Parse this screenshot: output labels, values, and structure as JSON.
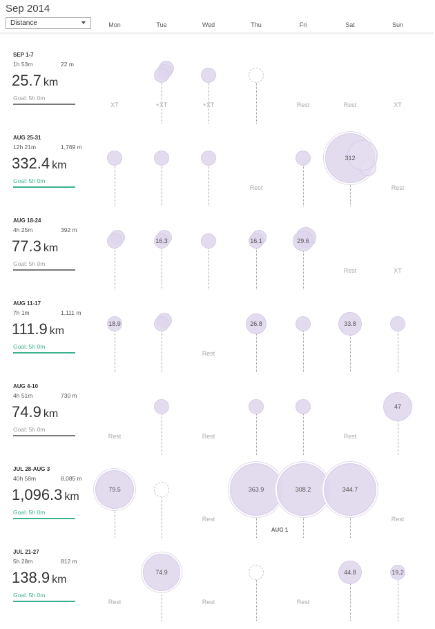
{
  "header": {
    "title": "Sep 2014",
    "metric_select": "Distance",
    "days": [
      "Mon",
      "Tue",
      "Wed",
      "Thu",
      "Fri",
      "Sat",
      "Sun"
    ]
  },
  "weeks": [
    {
      "date": "SEP 1-7",
      "time": "1h 53m",
      "elev": "22 m",
      "dist": "25.7",
      "unit": "km",
      "goal": "Goal: 5h 0m",
      "goal_met": false,
      "days": [
        {
          "type": "tag",
          "text": "XT"
        },
        {
          "type": "bubble",
          "size": "small",
          "stack": 3,
          "label": "",
          "tag": "+XT"
        },
        {
          "type": "bubble",
          "size": "small",
          "label": "",
          "tag": "+XT"
        },
        {
          "type": "empty"
        },
        {
          "type": "tag",
          "text": "Rest"
        },
        {
          "type": "tag",
          "text": "Rest"
        },
        {
          "type": "tag",
          "text": "XT"
        }
      ]
    },
    {
      "date": "AUG 25-31",
      "time": "12h 21m",
      "elev": "1,769 m",
      "dist": "332.4",
      "unit": "km",
      "goal": "Goal: 5h 0m",
      "goal_met": true,
      "days": [
        {
          "type": "bubble",
          "size": "small",
          "label": ""
        },
        {
          "type": "bubble",
          "size": "small",
          "label": ""
        },
        {
          "type": "bubble",
          "size": "small",
          "label": ""
        },
        {
          "type": "tag",
          "text": "Rest"
        },
        {
          "type": "bubble",
          "size": "small",
          "label": ""
        },
        {
          "type": "bubble",
          "size": "huge",
          "label": "312"
        },
        {
          "type": "tag",
          "text": "Rest"
        }
      ]
    },
    {
      "date": "AUG 18-24",
      "time": "4h 25m",
      "elev": "392 m",
      "dist": "77.3",
      "unit": "km",
      "goal": "Goal: 5h 0m",
      "goal_met": false,
      "days": [
        {
          "type": "bubble",
          "size": "small",
          "stack": 2,
          "label": ""
        },
        {
          "type": "bubble",
          "size": "small",
          "stack": 2,
          "label": "16.3"
        },
        {
          "type": "bubble",
          "size": "small",
          "label": ""
        },
        {
          "type": "bubble",
          "size": "small",
          "stack": 2,
          "label": "16.1"
        },
        {
          "type": "bubble",
          "size": "medium",
          "stack": 2,
          "label": "29.6"
        },
        {
          "type": "tag",
          "text": "Rest"
        },
        {
          "type": "tag",
          "text": "XT"
        }
      ]
    },
    {
      "date": "AUG 11-17",
      "time": "7h 1m",
      "elev": "1,111 m",
      "dist": "111.9",
      "unit": "km",
      "goal": "Goal: 5h 0m",
      "goal_met": true,
      "days": [
        {
          "type": "bubble",
          "size": "small",
          "label": "18.9"
        },
        {
          "type": "bubble",
          "size": "small",
          "stack": 2,
          "label": ""
        },
        {
          "type": "tag",
          "text": "Rest"
        },
        {
          "type": "bubble",
          "size": "medium",
          "label": "26.8"
        },
        {
          "type": "bubble",
          "size": "small",
          "label": ""
        },
        {
          "type": "bubble",
          "size": "large",
          "label": "33.8"
        },
        {
          "type": "bubble",
          "size": "small",
          "label": ""
        }
      ]
    },
    {
      "date": "AUG 4-10",
      "time": "4h 51m",
      "elev": "730 m",
      "dist": "74.9",
      "unit": "km",
      "goal": "Goal: 5h 0m",
      "goal_met": false,
      "days": [
        {
          "type": "tag",
          "text": "Rest"
        },
        {
          "type": "bubble",
          "size": "small",
          "label": ""
        },
        {
          "type": "tag",
          "text": "Rest"
        },
        {
          "type": "bubble",
          "size": "small",
          "label": ""
        },
        {
          "type": "bubble",
          "size": "small",
          "label": ""
        },
        {
          "type": "tag",
          "text": "Rest"
        },
        {
          "type": "bubble",
          "size": "xlarge",
          "label": "47"
        }
      ]
    },
    {
      "date": "JUL 28-AUG 3",
      "time": "40h 58m",
      "elev": "8,085 m",
      "dist": "1,096.3",
      "unit": "km",
      "goal": "Goal: 5h 0m",
      "goal_met": true,
      "days": [
        {
          "type": "bubble",
          "size": "xxl",
          "label": "79.5"
        },
        {
          "type": "empty"
        },
        {
          "type": "tag",
          "text": "Rest"
        },
        {
          "type": "bubble",
          "size": "giant",
          "label": "363.9"
        },
        {
          "type": "bubble",
          "size": "giant",
          "label": "308.2"
        },
        {
          "type": "bubble",
          "size": "giant",
          "label": "344.7"
        },
        {
          "type": "tag",
          "text": "Rest"
        }
      ],
      "marker": "AUG 1"
    },
    {
      "date": "JUL 21-27",
      "time": "5h 28m",
      "elev": "812 m",
      "dist": "138.9",
      "unit": "km",
      "goal": "Goal: 5h 0m",
      "goal_met": true,
      "days": [
        {
          "type": "tag",
          "text": "Rest"
        },
        {
          "type": "bubble",
          "size": "xxxl",
          "label": "74.9"
        },
        {
          "type": "tag",
          "text": "Rest"
        },
        {
          "type": "empty"
        },
        {
          "type": "tag",
          "text": "Rest"
        },
        {
          "type": "bubble",
          "size": "large",
          "label": "44.8"
        },
        {
          "type": "bubble",
          "size": "small",
          "label": "19.2"
        }
      ]
    }
  ]
}
